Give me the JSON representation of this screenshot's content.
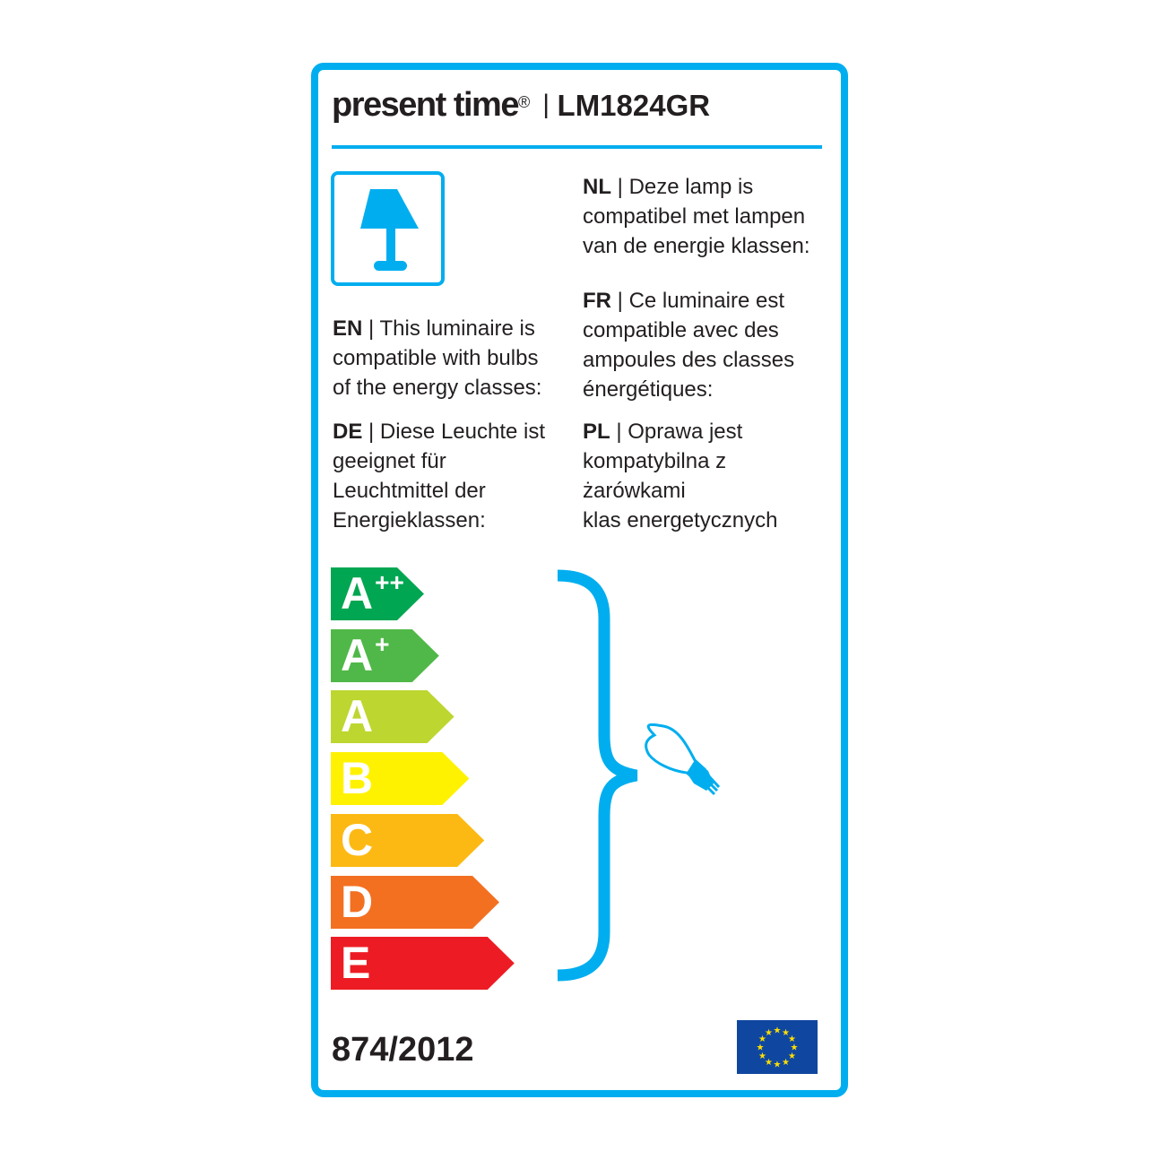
{
  "header": {
    "brand": "present time",
    "registered": "®",
    "separator": "|",
    "model": "LM1824GR"
  },
  "icons": {
    "product": "table-lamp-icon",
    "bulb": "light-bulb-icon",
    "flag": "eu-flag-icon"
  },
  "texts": {
    "en": {
      "code": "EN",
      "body": "This luminaire is\ncompatible with bulbs\nof the energy classes:"
    },
    "de": {
      "code": "DE",
      "body": "Diese Leuchte ist\ngeeignet für\nLeuchtmittel der\nEnergieklassen:"
    },
    "nl": {
      "code": "NL",
      "body": "Deze lamp is\ncompatibel met lampen\nvan de energie klassen:"
    },
    "fr": {
      "code": "FR",
      "body": "Ce luminaire est\ncompatible avec des\nampoules des classes\nénergétiques:"
    },
    "pl": {
      "code": "PL",
      "body": "Oprawa jest\nkompatybilna z\nżarówkami\nklas energetycznych"
    }
  },
  "energy_classes": [
    {
      "letter": "A",
      "sup": "++",
      "color": "#00a651"
    },
    {
      "letter": "A",
      "sup": "+",
      "color": "#50b848"
    },
    {
      "letter": "A",
      "sup": "",
      "color": "#bed630"
    },
    {
      "letter": "B",
      "sup": "",
      "color": "#fff200"
    },
    {
      "letter": "C",
      "sup": "",
      "color": "#fdb913"
    },
    {
      "letter": "D",
      "sup": "",
      "color": "#f37021"
    },
    {
      "letter": "E",
      "sup": "",
      "color": "#ed1c24"
    }
  ],
  "regulation": "874/2012",
  "accent_color": "#00aeef"
}
